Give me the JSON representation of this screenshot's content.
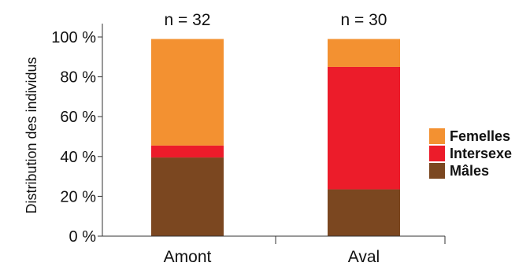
{
  "chart_data": {
    "type": "bar",
    "stacked": true,
    "title": "",
    "xlabel": "",
    "ylabel": "Distribution des individus",
    "ylim": [
      0,
      100
    ],
    "yticks": [
      0,
      20,
      40,
      60,
      80,
      100
    ],
    "ytick_labels": [
      "0 %",
      "20 %",
      "40 %",
      "60 %",
      "80 %",
      "100 %"
    ],
    "categories": [
      "Amont",
      "Aval"
    ],
    "annotations": [
      "n = 32",
      "n = 30"
    ],
    "series": [
      {
        "name": "Mâles",
        "color": "#7b4720",
        "values": [
          39.5,
          23.5
        ]
      },
      {
        "name": "Intersexe",
        "color": "#ec1c2a",
        "values": [
          6.0,
          61.5
        ]
      },
      {
        "name": "Femelles",
        "color": "#f39131",
        "values": [
          53.5,
          14.0
        ]
      }
    ],
    "legend": {
      "position": "right",
      "order": [
        "Femelles",
        "Intersexe",
        "Mâles"
      ]
    },
    "grid": false
  }
}
